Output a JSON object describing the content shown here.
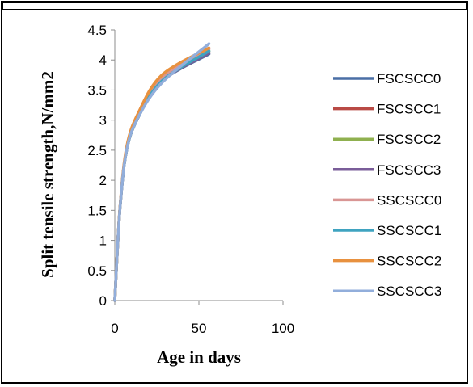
{
  "chart_data": {
    "type": "line",
    "title": "",
    "xlabel": "Age in days",
    "ylabel": "Split tensile strength,N/mm2",
    "xlim": [
      0,
      100
    ],
    "ylim": [
      0,
      4.5
    ],
    "xticks": [
      "0",
      "50",
      "100"
    ],
    "yticks": [
      "0",
      "0.5",
      "1",
      "1.5",
      "2",
      "2.5",
      "3",
      "3.5",
      "4",
      "4.5"
    ],
    "grid": false,
    "legend": "right",
    "x": [
      0,
      3,
      7,
      14,
      28,
      56
    ],
    "series": [
      {
        "name": "FSCSCC0",
        "color": "#4a6fa5",
        "values": [
          0,
          1.5,
          2.5,
          3.05,
          3.65,
          4.1
        ]
      },
      {
        "name": "FSCSCC1",
        "color": "#b94a45",
        "values": [
          0,
          1.5,
          2.5,
          3.05,
          3.65,
          4.12
        ]
      },
      {
        "name": "FSCSCC2",
        "color": "#8fb04f",
        "values": [
          0,
          1.5,
          2.5,
          3.05,
          3.68,
          4.15
        ]
      },
      {
        "name": "FSCSCC3",
        "color": "#7a5d99",
        "values": [
          0,
          1.5,
          2.5,
          3.05,
          3.65,
          4.12
        ]
      },
      {
        "name": "SSCSCC0",
        "color": "#d99694",
        "values": [
          0,
          1.5,
          2.52,
          3.08,
          3.7,
          4.18
        ]
      },
      {
        "name": "SSCSCC1",
        "color": "#3fa3c0",
        "values": [
          0,
          1.5,
          2.5,
          3.05,
          3.65,
          4.15
        ]
      },
      {
        "name": "SSCSCC2",
        "color": "#e8913f",
        "values": [
          0,
          1.52,
          2.55,
          3.12,
          3.75,
          4.2
        ]
      },
      {
        "name": "SSCSCC3",
        "color": "#92aedb",
        "values": [
          0,
          1.5,
          2.5,
          3.05,
          3.62,
          4.27
        ]
      }
    ]
  }
}
